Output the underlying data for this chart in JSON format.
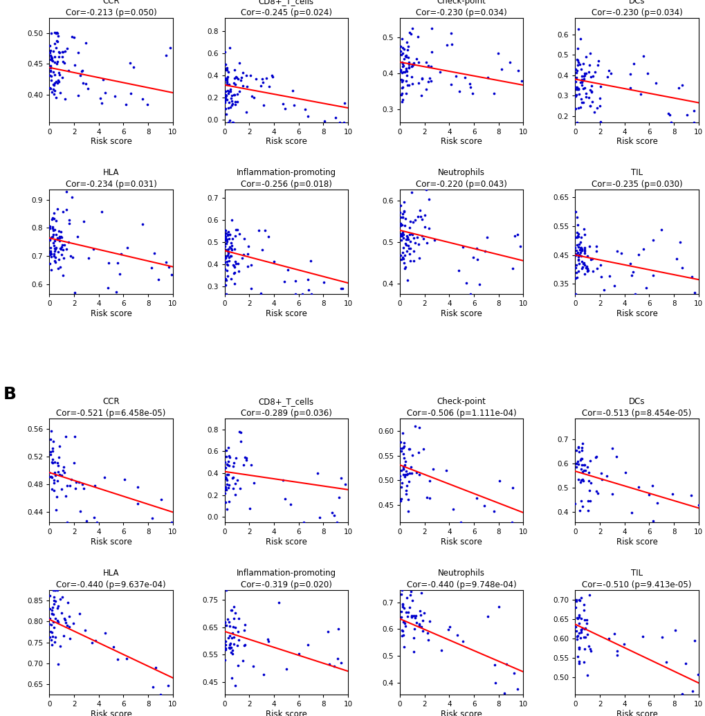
{
  "panel_A": {
    "plots": [
      {
        "title": "CCR",
        "cor": -0.213,
        "pval": "0.050",
        "ylim": [
          0.355,
          0.525
        ],
        "yticks": [
          0.4,
          0.45,
          0.5
        ],
        "line_start_y": 0.444,
        "line_end_y": 0.403
      },
      {
        "title": "CD8+_T_cells",
        "cor": -0.245,
        "pval": "0.024",
        "ylim": [
          -0.02,
          0.92
        ],
        "yticks": [
          0.0,
          0.2,
          0.4,
          0.6,
          0.8
        ],
        "line_start_y": 0.315,
        "line_end_y": 0.108
      },
      {
        "title": "Check-point",
        "cor": -0.23,
        "pval": "0.034",
        "ylim": [
          0.265,
          0.555
        ],
        "yticks": [
          0.3,
          0.4,
          0.5
        ],
        "line_start_y": 0.432,
        "line_end_y": 0.368
      },
      {
        "title": "DCs",
        "cor": -0.23,
        "pval": "0.034",
        "ylim": [
          0.17,
          0.68
        ],
        "yticks": [
          0.2,
          0.3,
          0.4,
          0.5,
          0.6
        ],
        "line_start_y": 0.38,
        "line_end_y": 0.265
      },
      {
        "title": "HLA",
        "cor": -0.234,
        "pval": "0.031",
        "ylim": [
          0.565,
          0.935
        ],
        "yticks": [
          0.6,
          0.7,
          0.8,
          0.9
        ],
        "line_start_y": 0.764,
        "line_end_y": 0.662
      },
      {
        "title": "Inflammation-promoting",
        "cor": -0.256,
        "pval": "0.018",
        "ylim": [
          0.265,
          0.735
        ],
        "yticks": [
          0.3,
          0.4,
          0.5,
          0.6,
          0.7
        ],
        "line_start_y": 0.461,
        "line_end_y": 0.315
      },
      {
        "title": "Neutrophils",
        "cor": -0.22,
        "pval": "0.043",
        "ylim": [
          0.375,
          0.625
        ],
        "yticks": [
          0.4,
          0.5,
          0.6
        ],
        "line_start_y": 0.528,
        "line_end_y": 0.455
      },
      {
        "title": "TIL",
        "cor": -0.235,
        "pval": "0.030",
        "ylim": [
          0.315,
          0.675
        ],
        "yticks": [
          0.35,
          0.45,
          0.55,
          0.65
        ],
        "line_start_y": 0.45,
        "line_end_y": 0.365
      }
    ],
    "xlim": [
      0,
      10
    ],
    "xticks": [
      0,
      2,
      4,
      6,
      8,
      10
    ],
    "n_points": 90
  },
  "panel_B": {
    "plots": [
      {
        "title": "CCR",
        "cor": -0.521,
        "pval": "6.458e-05",
        "ylim": [
          0.425,
          0.575
        ],
        "yticks": [
          0.44,
          0.48,
          0.52,
          0.56
        ],
        "line_start_y": 0.497,
        "line_end_y": 0.44
      },
      {
        "title": "CD8+_T_cells",
        "cor": -0.289,
        "pval": "0.036",
        "ylim": [
          -0.05,
          0.9
        ],
        "yticks": [
          0.0,
          0.2,
          0.4,
          0.6,
          0.8
        ],
        "line_start_y": 0.415,
        "line_end_y": 0.25
      },
      {
        "title": "Check-point",
        "cor": -0.506,
        "pval": "1.111e-04",
        "ylim": [
          0.415,
          0.625
        ],
        "yticks": [
          0.45,
          0.5,
          0.55,
          0.6
        ],
        "line_start_y": 0.531,
        "line_end_y": 0.435
      },
      {
        "title": "DCs",
        "cor": -0.513,
        "pval": "8.454e-05",
        "ylim": [
          0.355,
          0.785
        ],
        "yticks": [
          0.4,
          0.5,
          0.6,
          0.7
        ],
        "line_start_y": 0.567,
        "line_end_y": 0.415
      },
      {
        "title": "HLA",
        "cor": -0.44,
        "pval": "9.637e-04",
        "ylim": [
          0.625,
          0.875
        ],
        "yticks": [
          0.65,
          0.7,
          0.75,
          0.8,
          0.85
        ],
        "line_start_y": 0.805,
        "line_end_y": 0.665
      },
      {
        "title": "Inflammation-promoting",
        "cor": -0.319,
        "pval": "0.020",
        "ylim": [
          0.405,
          0.785
        ],
        "yticks": [
          0.45,
          0.55,
          0.65,
          0.75
        ],
        "line_start_y": 0.635,
        "line_end_y": 0.49
      },
      {
        "title": "Neutrophils",
        "cor": -0.44,
        "pval": "9.748e-04",
        "ylim": [
          0.355,
          0.745
        ],
        "yticks": [
          0.4,
          0.5,
          0.6,
          0.7
        ],
        "line_start_y": 0.638,
        "line_end_y": 0.44
      },
      {
        "title": "TIL",
        "cor": -0.51,
        "pval": "9.413e-05",
        "ylim": [
          0.455,
          0.725
        ],
        "yticks": [
          0.5,
          0.55,
          0.6,
          0.65,
          0.7
        ],
        "line_start_y": 0.637,
        "line_end_y": 0.485
      }
    ],
    "xlim": [
      0,
      10
    ],
    "xticks": [
      0,
      2,
      4,
      6,
      8,
      10
    ],
    "n_points": 60
  },
  "dot_color": "#0000CD",
  "line_color": "#FF0000",
  "xlabel": "Risk score",
  "bg_color": "#FFFFFF"
}
